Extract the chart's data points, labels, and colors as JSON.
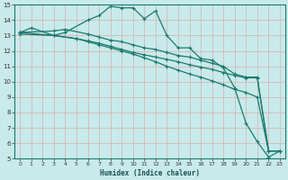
{
  "xlabel": "Humidex (Indice chaleur)",
  "ylabel": "",
  "background_color": "#c8eaea",
  "grid_color": "#d4b8b8",
  "line_color": "#1a7a6e",
  "xlim": [
    -0.5,
    23.5
  ],
  "ylim": [
    5,
    15
  ],
  "xticks": [
    0,
    1,
    2,
    3,
    4,
    5,
    6,
    7,
    8,
    9,
    10,
    11,
    12,
    13,
    14,
    15,
    16,
    17,
    18,
    19,
    20,
    21,
    22,
    23
  ],
  "yticks": [
    5,
    6,
    7,
    8,
    9,
    10,
    11,
    12,
    13,
    14,
    15
  ],
  "series": [
    {
      "x": [
        0,
        1,
        3,
        4,
        6,
        7,
        8,
        9,
        10,
        11,
        12,
        13,
        14,
        15,
        16,
        17,
        18,
        19,
        20,
        21,
        22,
        23
      ],
      "y": [
        13.2,
        13.5,
        13.0,
        13.2,
        14.0,
        14.3,
        14.9,
        14.8,
        14.8,
        14.1,
        14.6,
        13.0,
        12.2,
        12.2,
        11.5,
        11.4,
        10.9,
        9.6,
        7.3,
        6.1,
        5.1,
        5.5
      ]
    },
    {
      "x": [
        0,
        3,
        4,
        6,
        7,
        8,
        9,
        10,
        11,
        12,
        13,
        14,
        15,
        16,
        17,
        18,
        19,
        20,
        21,
        22,
        23
      ],
      "y": [
        13.2,
        13.3,
        13.4,
        13.1,
        12.9,
        12.7,
        12.6,
        12.4,
        12.2,
        12.1,
        11.9,
        11.7,
        11.6,
        11.4,
        11.2,
        11.0,
        10.5,
        10.3,
        10.3,
        5.5,
        5.5
      ]
    },
    {
      "x": [
        0,
        3,
        5,
        6,
        7,
        8,
        9,
        10,
        11,
        12,
        13,
        14,
        15,
        16,
        17,
        18,
        19,
        20,
        21,
        22,
        23
      ],
      "y": [
        13.2,
        13.0,
        12.8,
        12.65,
        12.5,
        12.3,
        12.1,
        11.9,
        11.75,
        11.6,
        11.45,
        11.3,
        11.1,
        10.95,
        10.8,
        10.6,
        10.4,
        10.25,
        10.25,
        5.5,
        5.5
      ]
    },
    {
      "x": [
        0,
        3,
        5,
        6,
        7,
        8,
        9,
        10,
        11,
        12,
        13,
        14,
        15,
        16,
        17,
        18,
        19,
        20,
        21,
        22,
        23
      ],
      "y": [
        13.1,
        13.0,
        12.8,
        12.6,
        12.4,
        12.2,
        12.0,
        11.8,
        11.55,
        11.3,
        11.0,
        10.75,
        10.5,
        10.3,
        10.05,
        9.8,
        9.5,
        9.3,
        9.0,
        5.5,
        5.5
      ]
    }
  ]
}
